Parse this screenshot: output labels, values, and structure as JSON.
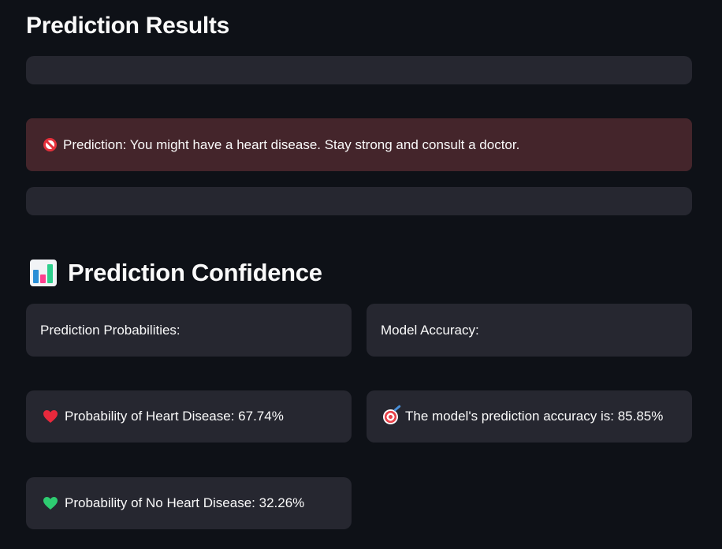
{
  "results": {
    "title": "Prediction Results",
    "alert_text": "Prediction: You might have a heart disease. Stay strong and consult a doctor.",
    "alert_icon": "no-entry-icon",
    "alert_color": "#44252b"
  },
  "confidence": {
    "title": "Prediction Confidence",
    "title_icon": "bar-chart-icon",
    "probabilities_label": "Prediction Probabilities:",
    "accuracy_label": "Model Accuracy:",
    "heart_disease_text": "Probability of Heart Disease: 67.74%",
    "heart_disease_icon": "red-heart-icon",
    "no_heart_disease_text": "Probability of No Heart Disease: 32.26%",
    "no_heart_disease_icon": "green-heart-icon",
    "accuracy_text": "The model's prediction accuracy is: 85.85%",
    "accuracy_icon": "target-icon"
  },
  "colors": {
    "background": "#0e1117",
    "box": "#262730",
    "red_heart": "#e8293c",
    "green_heart": "#2ecc71"
  }
}
